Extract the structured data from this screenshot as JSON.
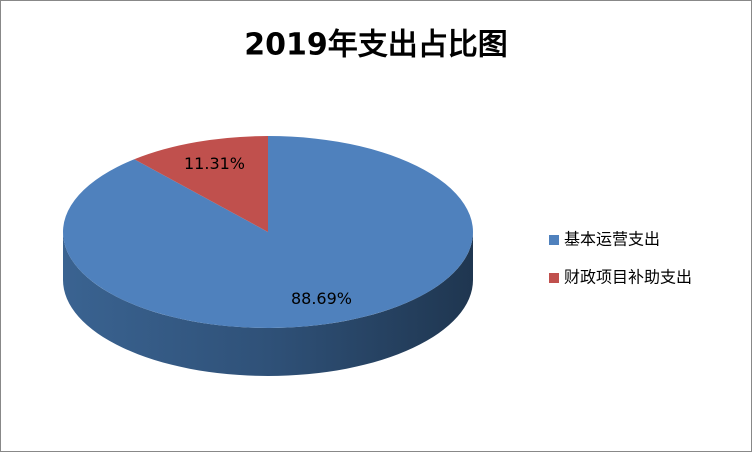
{
  "chart_data": {
    "type": "pie",
    "title": "2019年支出占比图",
    "categories": [
      "基本运营支出",
      "财政项目补助支出"
    ],
    "values": [
      88.69,
      11.31
    ],
    "value_labels": [
      "88.69%",
      "11.31%"
    ],
    "colors": [
      "#4f81bd",
      "#c0504d"
    ],
    "legend": "right"
  }
}
